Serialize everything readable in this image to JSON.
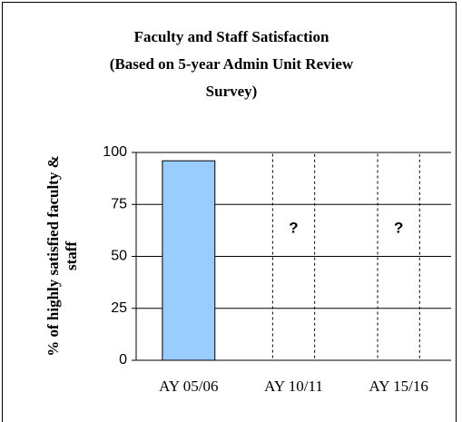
{
  "chart_data": {
    "type": "bar",
    "title": [
      "Faculty and Staff Satisfaction",
      "(Based on 5-year Admin Unit Review",
      "Survey)"
    ],
    "y_label": [
      "% of highly satisfied faculty &",
      "staff"
    ],
    "categories": [
      "AY 05/06",
      "AY 10/11",
      "AY 15/16"
    ],
    "values": [
      96,
      null,
      null
    ],
    "value_labels": [
      null,
      "?",
      "?"
    ],
    "placeholder_values": [
      null,
      100,
      100
    ],
    "color": "#99ccff",
    "ylim": [
      0,
      100
    ],
    "yticks": [
      0,
      25,
      50,
      75,
      100
    ],
    "grid": true
  }
}
